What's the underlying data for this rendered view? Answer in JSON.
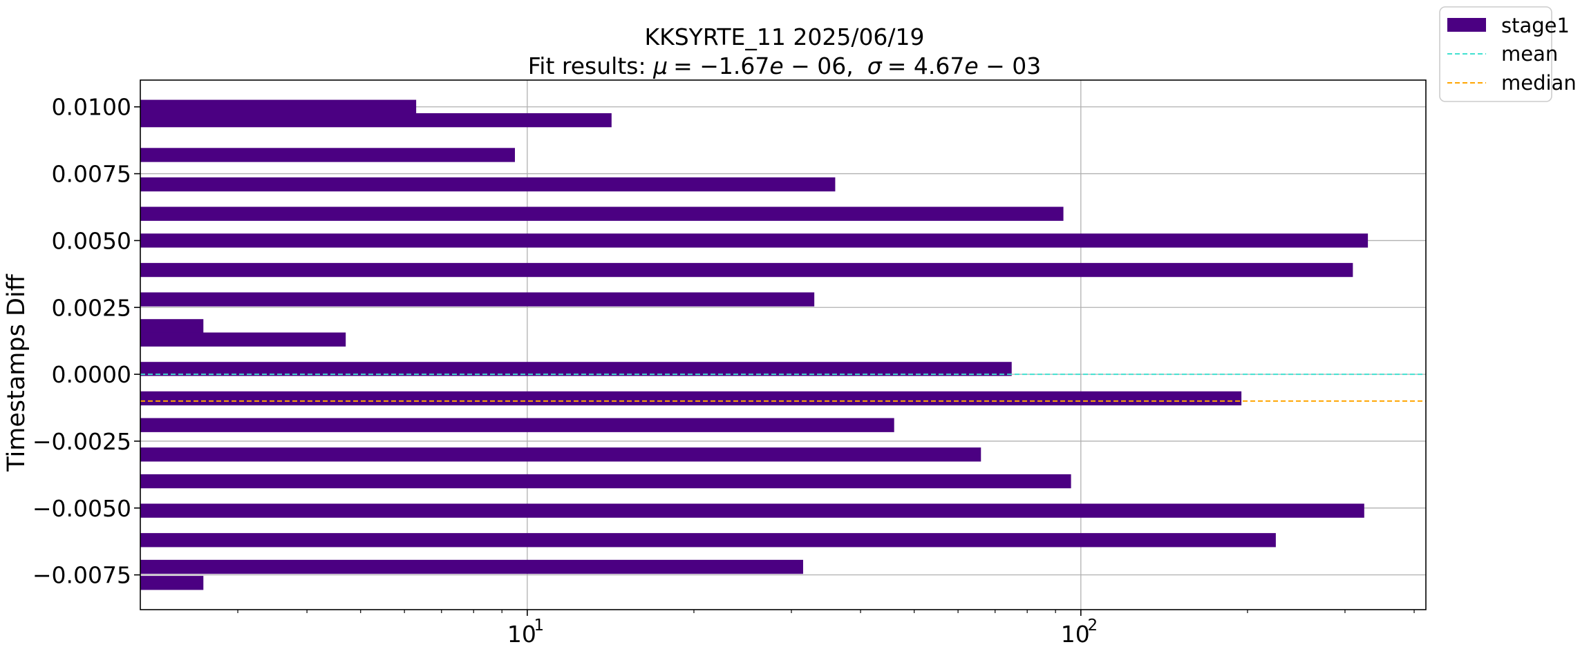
{
  "chart_data": {
    "type": "bar",
    "orientation": "horizontal",
    "title": "KKSYRTE_11 2025/06/19",
    "subtitle": "Fit results: μ = −1.67e−06,  σ = 4.67e−03",
    "subtitle_parts": {
      "prefix": "Fit results: ",
      "mu_symbol": "μ",
      "mu_value": "= −1.67",
      "mu_e": "e",
      "mu_exp": " − 06,",
      "sigma_symbol": "σ",
      "sigma_value": "= 4.67",
      "sigma_e": "e",
      "sigma_exp": " − 03"
    },
    "xlabel": "",
    "ylabel": "Timestamps Diff",
    "x_scale": "log",
    "xlim": [
      2.0,
      420
    ],
    "ylim": [
      -0.0088,
      0.011
    ],
    "x_ticks": [
      {
        "value": 10,
        "label": "10",
        "exp": "1"
      },
      {
        "value": 100,
        "label": "10",
        "exp": "2"
      }
    ],
    "y_ticks": [
      {
        "value": 0.01,
        "label": "0.0100"
      },
      {
        "value": 0.0075,
        "label": "0.0075"
      },
      {
        "value": 0.005,
        "label": "0.0050"
      },
      {
        "value": 0.0025,
        "label": "0.0025"
      },
      {
        "value": 0.0,
        "label": "0.0000"
      },
      {
        "value": -0.0025,
        "label": "−0.0025"
      },
      {
        "value": -0.005,
        "label": "−0.0050"
      },
      {
        "value": -0.0075,
        "label": "−0.0075"
      }
    ],
    "grid": true,
    "bin_width": 0.000525,
    "series": [
      {
        "name": "stage1",
        "color": "#4b0082",
        "bins": [
          {
            "y": 0.01,
            "count": 6.3
          },
          {
            "y": 0.0095,
            "count": 14.2
          },
          {
            "y": 0.0082,
            "count": 9.5
          },
          {
            "y": 0.0071,
            "count": 36
          },
          {
            "y": 0.006,
            "count": 93
          },
          {
            "y": 0.005,
            "count": 330
          },
          {
            "y": 0.0039,
            "count": 310
          },
          {
            "y": 0.0028,
            "count": 33
          },
          {
            "y": 0.0018,
            "count": 2.6
          },
          {
            "y": 0.0013,
            "count": 4.7
          },
          {
            "y": 0.0002,
            "count": 75
          },
          {
            "y": -0.0009,
            "count": 195
          },
          {
            "y": -0.0019,
            "count": 46
          },
          {
            "y": -0.003,
            "count": 66
          },
          {
            "y": -0.004,
            "count": 96
          },
          {
            "y": -0.0051,
            "count": 325
          },
          {
            "y": -0.0062,
            "count": 225
          },
          {
            "y": -0.0072,
            "count": 31.5
          },
          {
            "y": -0.0078,
            "count": 2.6
          }
        ]
      }
    ],
    "reference_lines": [
      {
        "name": "mean",
        "y": -1.7e-06,
        "color": "#40e0d0",
        "style": "dashed"
      },
      {
        "name": "median",
        "y": -0.001,
        "color": "#ffa500",
        "style": "dashed"
      }
    ],
    "legend": {
      "placement": "outside top-right",
      "entries": [
        {
          "label": "stage1",
          "kind": "patch",
          "color": "#4b0082"
        },
        {
          "label": "mean",
          "kind": "dashed-line",
          "color": "#40e0d0"
        },
        {
          "label": "median",
          "kind": "dashed-line",
          "color": "#ffa500"
        }
      ]
    }
  }
}
